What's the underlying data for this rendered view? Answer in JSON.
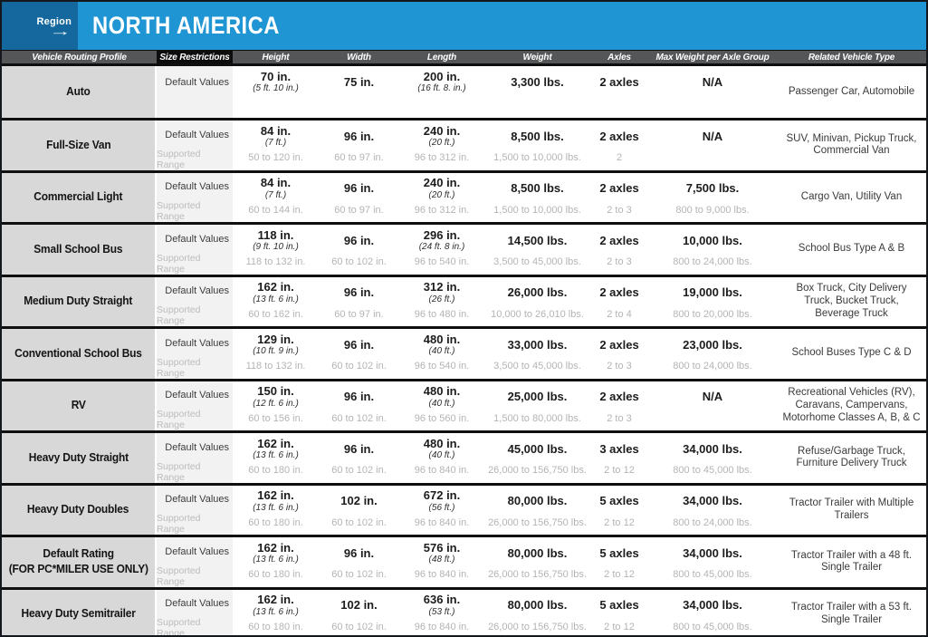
{
  "region": {
    "label": "Region",
    "arrow": "→",
    "value": "NORTH AMERICA"
  },
  "columns": [
    "Vehicle Routing Profile",
    "Size Restrictions",
    "Height",
    "Width",
    "Length",
    "Weight",
    "Axles",
    "Max Weight per Axle Group",
    "Related Vehicle Type"
  ],
  "row_labels": {
    "default": "Default Values",
    "range": "Supported Range"
  },
  "colors": {
    "region_dark_blue": "#15689e",
    "region_light_blue": "#2095d3",
    "header_gray": "#555658",
    "header_black": "#0d0d0d",
    "profile_bg": "#d8d8d8",
    "restriction_bg": "#f2f2f2",
    "range_text": "#b4b4b4",
    "separator": "#0f0f0f"
  },
  "rows": [
    {
      "profile": "Auto",
      "default": {
        "height": "70 in.",
        "height_sub": "(5 ft. 10 in.)",
        "width": "75 in.",
        "length": "200 in.",
        "length_sub": "(16 ft. 8. in.)",
        "weight": "3,300 lbs.",
        "axles": "2 axles",
        "max_weight": "N/A"
      },
      "range": null,
      "related": "Passenger Car, Automobile"
    },
    {
      "profile": "Full-Size Van",
      "default": {
        "height": "84 in.",
        "height_sub": "(7 ft.)",
        "width": "96 in.",
        "length": "240 in.",
        "length_sub": "(20 ft.)",
        "weight": "8,500 lbs.",
        "axles": "2 axles",
        "max_weight": "N/A"
      },
      "range": {
        "height": "50 to 120 in.",
        "width": "60 to 97 in.",
        "length": "96 to 312 in.",
        "weight": "1,500 to 10,000 lbs.",
        "axles": "2",
        "max_weight": ""
      },
      "related": "SUV, Minivan, Pickup Truck, Commercial Van"
    },
    {
      "profile": "Commercial Light",
      "default": {
        "height": "84 in.",
        "height_sub": "(7 ft.)",
        "width": "96 in.",
        "length": "240 in.",
        "length_sub": "(20 ft.)",
        "weight": "8,500 lbs.",
        "axles": "2 axles",
        "max_weight": "7,500 lbs."
      },
      "range": {
        "height": "60 to 144 in.",
        "width": "60 to 97 in.",
        "length": "96 to 312 in.",
        "weight": "1,500 to 10,000 lbs.",
        "axles": "2 to 3",
        "max_weight": "800 to 9,000 lbs."
      },
      "related": "Cargo Van, Utility Van"
    },
    {
      "profile": "Small School Bus",
      "default": {
        "height": "118 in.",
        "height_sub": "(9 ft. 10 in.)",
        "width": "96 in.",
        "length": "296 in.",
        "length_sub": "(24 ft. 8 in.)",
        "weight": "14,500 lbs.",
        "axles": "2 axles",
        "max_weight": "10,000 lbs."
      },
      "range": {
        "height": "118 to 132 in.",
        "width": "60 to 102 in.",
        "length": "96 to 540 in.",
        "weight": "3,500 to 45,000 lbs.",
        "axles": "2 to 3",
        "max_weight": "800 to 24,000 lbs."
      },
      "related": "School Bus Type A & B"
    },
    {
      "profile": "Medium Duty Straight",
      "default": {
        "height": "162 in.",
        "height_sub": "(13 ft. 6 in.)",
        "width": "96 in.",
        "length": "312 in.",
        "length_sub": "(26 ft.)",
        "weight": "26,000 lbs.",
        "axles": "2 axles",
        "max_weight": "19,000 lbs."
      },
      "range": {
        "height": "60 to 162 in.",
        "width": "60 to 97 in.",
        "length": "96 to 480 in.",
        "weight": "10,000 to 26,010 lbs.",
        "axles": "2 to 4",
        "max_weight": "800 to 20,000 lbs."
      },
      "related": "Box Truck, City Delivery Truck, Bucket Truck, Beverage Truck"
    },
    {
      "profile": "Conventional School Bus",
      "default": {
        "height": "129 in.",
        "height_sub": "(10 ft. 9 in.)",
        "width": "96 in.",
        "length": "480 in.",
        "length_sub": "(40 ft.)",
        "weight": "33,000 lbs.",
        "axles": "2 axles",
        "max_weight": "23,000 lbs."
      },
      "range": {
        "height": "118 to 132 in.",
        "width": "60 to 102 in.",
        "length": "96 to 540 in.",
        "weight": "3,500 to 45,000 lbs.",
        "axles": "2 to 3",
        "max_weight": "800 to 24,000 lbs."
      },
      "related": "School Buses Type C & D"
    },
    {
      "profile": "RV",
      "default": {
        "height": "150 in.",
        "height_sub": "(12 ft. 6 in.)",
        "width": "96 in.",
        "length": "480 in.",
        "length_sub": "(40 ft.)",
        "weight": "25,000 lbs.",
        "axles": "2 axles",
        "max_weight": "N/A"
      },
      "range": {
        "height": "60 to 156 in.",
        "width": "60 to 102 in.",
        "length": "96 to 560 in.",
        "weight": "1,500 to 80,000 lbs.",
        "axles": "2 to 3",
        "max_weight": ""
      },
      "related": "Recreational Vehicles (RV), Caravans, Campervans, Motorhome Classes A, B, & C"
    },
    {
      "profile": "Heavy Duty Straight",
      "default": {
        "height": "162 in.",
        "height_sub": "(13 ft. 6 in.)",
        "width": "96 in.",
        "length": "480 in.",
        "length_sub": "(40 ft.)",
        "weight": "45,000 lbs.",
        "axles": "3 axles",
        "max_weight": "34,000 lbs."
      },
      "range": {
        "height": "60 to 180 in.",
        "width": "60 to 102 in.",
        "length": "96 to 840 in.",
        "weight": "26,000 to 156,750 lbs.",
        "axles": "2 to 12",
        "max_weight": "800 to 45,000 lbs."
      },
      "related": "Refuse/Garbage Truck, Furniture Delivery Truck"
    },
    {
      "profile": "Heavy Duty Doubles",
      "default": {
        "height": "162 in.",
        "height_sub": "(13 ft. 6 in.)",
        "width": "102 in.",
        "length": "672 in.",
        "length_sub": "(56 ft.)",
        "weight": "80,000 lbs.",
        "axles": "5 axles",
        "max_weight": "34,000 lbs."
      },
      "range": {
        "height": "60 to 180 in.",
        "width": "60 to 102 in.",
        "length": "96 to 840 in.",
        "weight": "26,000 to 156,750 lbs.",
        "axles": "2 to 12",
        "max_weight": "800 to 24,000 lbs."
      },
      "related": "Tractor Trailer with Multiple Trailers"
    },
    {
      "profile": "Default Rating",
      "profile2": "(FOR PC*MILER USE ONLY)",
      "default": {
        "height": "162 in.",
        "height_sub": "(13 ft. 6 in.)",
        "width": "96 in.",
        "length": "576 in.",
        "length_sub": "(48 ft.)",
        "weight": "80,000 lbs.",
        "axles": "5 axles",
        "max_weight": "34,000 lbs."
      },
      "range": {
        "height": "60 to 180 in.",
        "width": "60 to 102 in.",
        "length": "96 to 840 in.",
        "weight": "26,000 to 156,750 lbs.",
        "axles": "2 to 12",
        "max_weight": "800 to 45,000 lbs."
      },
      "related": "Tractor Trailer with a 48 ft. Single Trailer"
    },
    {
      "profile": "Heavy Duty Semitrailer",
      "default": {
        "height": "162 in.",
        "height_sub": "(13 ft. 6 in.)",
        "width": "102 in.",
        "length": "636 in.",
        "length_sub": "(53 ft.)",
        "weight": "80,000 lbs.",
        "axles": "5 axles",
        "max_weight": "34,000 lbs."
      },
      "range": {
        "height": "60 to 180 in.",
        "width": "60 to 102 in.",
        "length": "96 to 840 in.",
        "weight": "26,000 to 156,750 lbs.",
        "axles": "2 to 12",
        "max_weight": "800 to 45,000 lbs."
      },
      "related": "Tractor Trailer with a 53 ft. Single Trailer"
    }
  ]
}
